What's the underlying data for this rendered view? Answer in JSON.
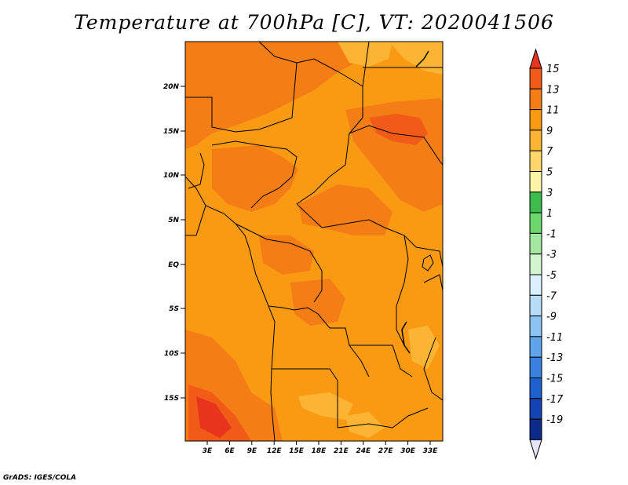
{
  "title": "Temperature at 700hPa [C], VT: 2020041506",
  "credit": "GrADS: IGES/COLA",
  "map": {
    "lat_ticks": [
      "20N",
      "15N",
      "10N",
      "5N",
      "EQ",
      "5S",
      "10S",
      "15S"
    ],
    "lon_ticks": [
      "3E",
      "6E",
      "9E",
      "12E",
      "15E",
      "18E",
      "21E",
      "24E",
      "27E",
      "30E",
      "33E"
    ]
  },
  "colorbar": {
    "labels": [
      "15",
      "13",
      "11",
      "9",
      "7",
      "5",
      "3",
      "1",
      "-1",
      "-3",
      "-5",
      "-7",
      "-9",
      "-11",
      "-13",
      "-15",
      "-17",
      "-19"
    ],
    "colors": [
      "#e8341c",
      "#f25a17",
      "#f57d15",
      "#fa9a12",
      "#fbb433",
      "#fdd769",
      "#fdf5a6",
      "#3cbc4a",
      "#6bd66a",
      "#a4e7a0",
      "#d2f4cf",
      "#daf0fc",
      "#b6dcf8",
      "#8bc4f3",
      "#5ea5ec",
      "#3a82e0",
      "#1f60cf",
      "#1444b3",
      "#0c2a8a",
      "#05125e"
    ]
  }
}
